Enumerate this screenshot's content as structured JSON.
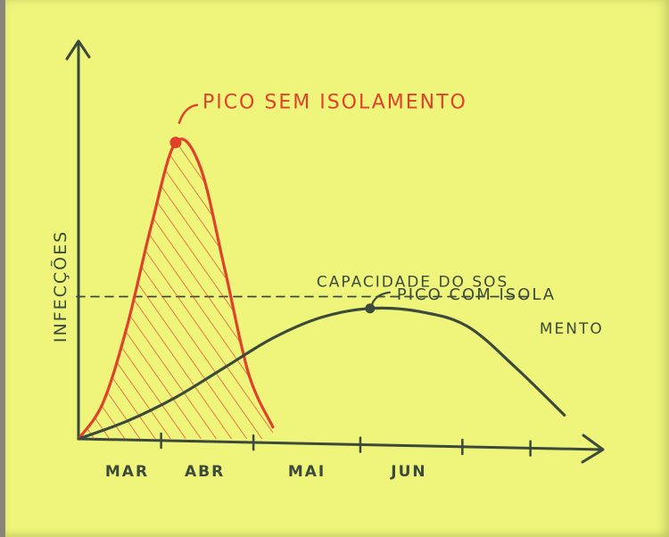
{
  "chart_data": {
    "type": "line",
    "title": "",
    "xlabel": "",
    "ylabel": "INFECÇÕES",
    "categories": [
      "MAR",
      "ABR",
      "MAI",
      "JUN"
    ],
    "series": [
      {
        "name": "",
        "color": "#e0412b",
        "x": [
          0.0,
          0.5,
          1.0,
          1.5,
          2.0,
          2.5,
          3.0,
          3.5,
          4.0
        ],
        "y": [
          0,
          12,
          38,
          72,
          100,
          92,
          58,
          22,
          4
        ],
        "shaded": true
      },
      {
        "name": "",
        "color": "#3b4a3a",
        "x": [
          0,
          1,
          2,
          3,
          4,
          5,
          6,
          7,
          8,
          9,
          10
        ],
        "y": [
          0,
          6,
          14,
          24,
          34,
          41,
          44,
          43,
          38,
          24,
          8
        ],
        "shaded": false
      }
    ],
    "x_axis_max": 10.5,
    "y_axis_max": 130,
    "capacity": {
      "label": "CAPACIDADE DO SOS",
      "y": 48
    },
    "annotations": [
      {
        "text": "PICO SEM ISOLAMENTO",
        "series": 0,
        "point": 4
      },
      {
        "text_lines": [
          "PICO COM ISOLA",
          "MENTO"
        ],
        "series": 1,
        "point": 6
      }
    ]
  }
}
